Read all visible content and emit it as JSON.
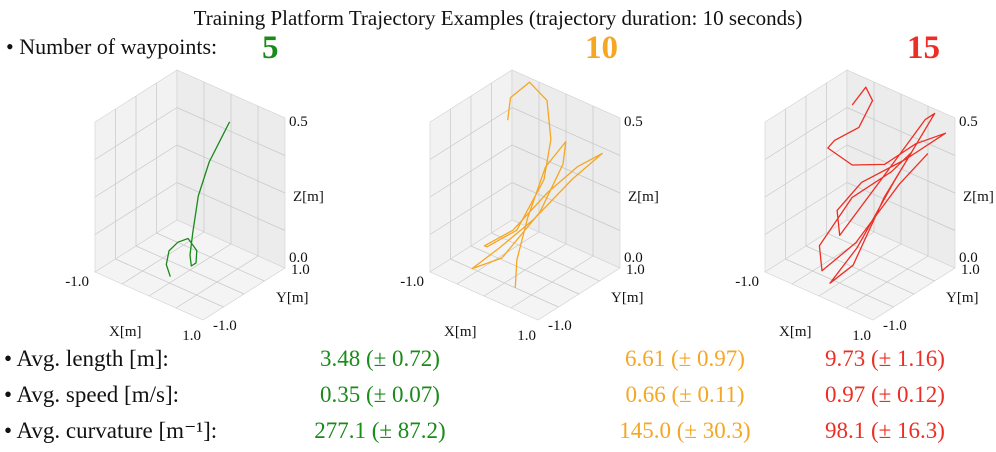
{
  "header": {
    "title": "Training Platform Trajectory Examples (trajectory duration: 10 seconds)",
    "waypoints_label": "• Number of waypoints:"
  },
  "colors": {
    "n5": "#1a8a1a",
    "n10": "#f5a623",
    "n15": "#ec2e24"
  },
  "chart_data": [
    {
      "type": "line3d",
      "series_name": "5",
      "color": "#1a8a1a",
      "xlabel": "X[m]",
      "ylabel": "Y[m]",
      "zlabel": "Z[m]",
      "xlim": [
        -1.0,
        1.0
      ],
      "ylim": [
        -1.0,
        1.0
      ],
      "zlim": [
        0.0,
        0.5
      ],
      "xticks": [
        "-1.0",
        "1.0"
      ],
      "yticks": [
        "-1.0",
        "1.0"
      ],
      "zticks": [
        "0.0",
        "0.5"
      ],
      "points": [
        [
          0.05,
          0.9,
          0.42
        ],
        [
          0.0,
          0.8,
          0.38
        ],
        [
          -0.1,
          0.6,
          0.3
        ],
        [
          -0.15,
          0.4,
          0.2
        ],
        [
          -0.1,
          0.2,
          0.1
        ],
        [
          0.0,
          0.0,
          0.05
        ],
        [
          0.1,
          -0.1,
          0.03
        ],
        [
          0.15,
          -0.05,
          0.04
        ],
        [
          0.05,
          0.1,
          0.06
        ],
        [
          -0.15,
          0.15,
          0.08
        ],
        [
          -0.3,
          0.1,
          0.06
        ],
        [
          -0.35,
          -0.05,
          0.04
        ],
        [
          -0.25,
          -0.25,
          0.02
        ],
        [
          -0.1,
          -0.35,
          0.0
        ]
      ]
    },
    {
      "type": "line3d",
      "series_name": "10",
      "color": "#f5a623",
      "xlabel": "X[m]",
      "ylabel": "Y[m]",
      "zlabel": "Z[m]",
      "xlim": [
        -1.0,
        1.0
      ],
      "ylim": [
        -1.0,
        1.0
      ],
      "zlim": [
        0.0,
        0.5
      ],
      "xticks": [
        "-1.0",
        "1.0"
      ],
      "yticks": [
        "-1.0",
        "1.0"
      ],
      "zticks": [
        "0.0",
        "0.5"
      ],
      "points": [
        [
          -0.7,
          0.5,
          0.4
        ],
        [
          -0.8,
          0.7,
          0.45
        ],
        [
          -0.6,
          0.9,
          0.5
        ],
        [
          -0.2,
          0.8,
          0.48
        ],
        [
          0.1,
          0.5,
          0.4
        ],
        [
          0.2,
          0.2,
          0.3
        ],
        [
          0.0,
          -0.2,
          0.15
        ],
        [
          -0.4,
          -0.4,
          0.08
        ],
        [
          -0.6,
          -0.2,
          0.05
        ],
        [
          -0.3,
          0.1,
          0.1
        ],
        [
          0.2,
          0.3,
          0.25
        ],
        [
          0.6,
          0.5,
          0.35
        ],
        [
          0.9,
          0.7,
          0.4
        ],
        [
          0.5,
          0.5,
          0.3
        ],
        [
          0.0,
          0.2,
          0.15
        ],
        [
          -0.4,
          -0.1,
          0.05
        ],
        [
          -0.6,
          -0.5,
          0.0
        ],
        [
          -0.2,
          -0.3,
          0.05
        ],
        [
          0.2,
          0.1,
          0.2
        ],
        [
          0.4,
          0.4,
          0.35
        ],
        [
          0.3,
          0.6,
          0.4
        ],
        [
          0.0,
          0.5,
          0.3
        ],
        [
          -0.1,
          0.2,
          0.15
        ],
        [
          0.0,
          -0.2,
          0.05
        ],
        [
          0.2,
          -0.5,
          0.0
        ]
      ]
    },
    {
      "type": "line3d",
      "series_name": "15",
      "color": "#ec2e24",
      "xlabel": "X[m]",
      "ylabel": "Y[m]",
      "zlabel": "Z[m]",
      "xlim": [
        -1.0,
        1.0
      ],
      "ylim": [
        -1.0,
        1.0
      ],
      "zlim": [
        0.0,
        0.5
      ],
      "xticks": [
        "-1.0",
        "1.0"
      ],
      "yticks": [
        "-1.0",
        "1.0"
      ],
      "zticks": [
        "0.0",
        "0.5"
      ],
      "points": [
        [
          -0.6,
          0.6,
          0.45
        ],
        [
          -0.5,
          0.8,
          0.5
        ],
        [
          -0.3,
          0.7,
          0.48
        ],
        [
          -0.4,
          0.5,
          0.4
        ],
        [
          -0.7,
          0.3,
          0.35
        ],
        [
          -0.9,
          0.4,
          0.3
        ],
        [
          -0.6,
          0.6,
          0.25
        ],
        [
          0.0,
          0.6,
          0.3
        ],
        [
          0.5,
          0.7,
          0.4
        ],
        [
          0.9,
          0.9,
          0.45
        ],
        [
          0.4,
          0.6,
          0.35
        ],
        [
          -0.2,
          0.3,
          0.25
        ],
        [
          -0.5,
          0.1,
          0.15
        ],
        [
          -0.3,
          -0.1,
          0.1
        ],
        [
          0.2,
          0.3,
          0.3
        ],
        [
          0.6,
          0.8,
          0.48
        ],
        [
          0.7,
          0.9,
          0.5
        ],
        [
          0.4,
          0.3,
          0.3
        ],
        [
          0.1,
          -0.2,
          0.1
        ],
        [
          -0.1,
          -0.6,
          0.0
        ],
        [
          0.1,
          -0.3,
          0.05
        ],
        [
          0.3,
          0.2,
          0.25
        ],
        [
          0.5,
          0.6,
          0.38
        ],
        [
          0.2,
          0.5,
          0.3
        ],
        [
          -0.3,
          0.2,
          0.2
        ],
        [
          -0.6,
          -0.2,
          0.05
        ],
        [
          -0.4,
          -0.4,
          0.0
        ],
        [
          0.0,
          -0.1,
          0.1
        ],
        [
          0.5,
          0.3,
          0.3
        ],
        [
          0.8,
          0.6,
          0.4
        ]
      ]
    }
  ],
  "stats": {
    "rows": [
      {
        "label": "• Avg. length [m]:",
        "values": [
          "3.48 (± 0.72)",
          "6.61 (± 0.97)",
          "9.73 (± 1.16)"
        ]
      },
      {
        "label": "• Avg. speed [m/s]:",
        "values": [
          "0.35 (± 0.07)",
          "0.66 (± 0.11)",
          "0.97 (± 0.12)"
        ]
      },
      {
        "label": "• Avg. curvature [m⁻¹]:",
        "values": [
          "277.1 (± 87.2)",
          "145.0 (± 30.3)",
          "98.1 (± 16.3)"
        ]
      }
    ]
  }
}
